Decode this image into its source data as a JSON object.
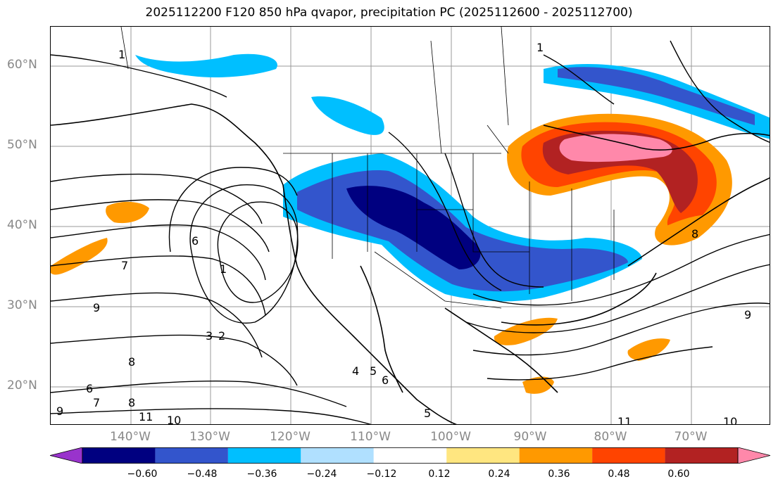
{
  "title": "2025112200 F120 850 hPa qvapor, precipitation PC (2025112600 - 2025112700)",
  "lat_labels": [
    "60°N",
    "50°N",
    "40°N",
    "30°N",
    "20°N"
  ],
  "lon_labels": [
    "140°W",
    "130°W",
    "120°W",
    "110°W",
    "100°W",
    "90°W",
    "80°W",
    "70°W"
  ],
  "colorbar": {
    "ticks": [
      "−0.60",
      "−0.48",
      "−0.36",
      "−0.24",
      "−0.12",
      "0.12",
      "0.24",
      "0.36",
      "0.48",
      "0.60"
    ],
    "colors": [
      "#9933cc",
      "#000080",
      "#3355cc",
      "#00bfff",
      "#b0e0ff",
      "#ffffff",
      "#ffe680",
      "#ff9900",
      "#ff4400",
      "#b22222",
      "#ff88aa"
    ]
  },
  "contour_labels": [
    "1",
    "7",
    "6",
    "1",
    "3",
    "2",
    "4",
    "5",
    "6",
    "8",
    "9",
    "10",
    "11",
    "5",
    "6",
    "7",
    "8",
    "9",
    "8",
    "9",
    "10",
    "11",
    "1"
  ]
}
